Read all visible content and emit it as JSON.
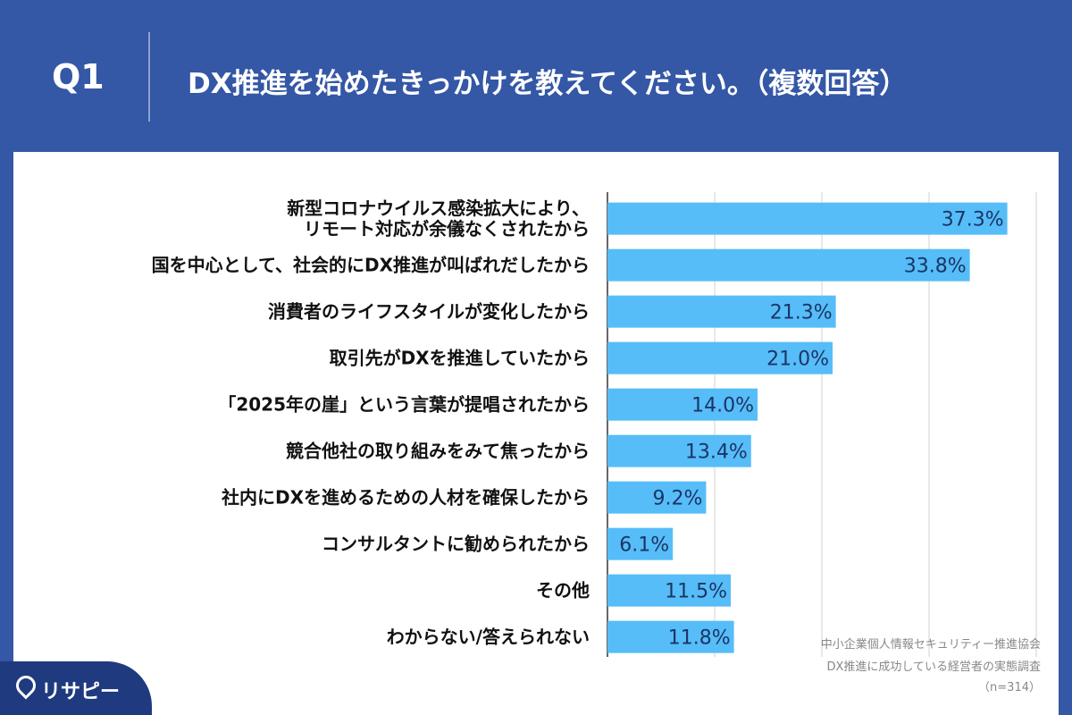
{
  "header": {
    "label": "Q1",
    "title": "DX推進を始めたきっかけを教えてください。（複数回答）"
  },
  "chart_data": {
    "type": "bar",
    "orientation": "horizontal",
    "categories": [
      "新型コロナウイルス感染拡大により、\nリモート対応が余儀なくされたから",
      "国を中心として、社会的にDX推進が叫ばれだしたから",
      "消費者のライフスタイルが変化したから",
      "取引先がDXを推進していたから",
      "「2025年の崖」という言葉が提唱されたから",
      "競合他社の取り組みをみて焦ったから",
      "社内にDXを進めるための人材を確保したから",
      "コンサルタントに勧められたから",
      "その他",
      "わからない/答えられない"
    ],
    "values": [
      37.3,
      33.8,
      21.3,
      21.0,
      14.0,
      13.4,
      9.2,
      6.1,
      11.5,
      11.8
    ],
    "value_labels": [
      "37.3%",
      "33.8%",
      "21.3%",
      "21.0%",
      "14.0%",
      "13.4%",
      "9.2%",
      "6.1%",
      "11.5%",
      "11.8%"
    ],
    "color": "#56bdf8",
    "xlim": [
      0,
      40
    ],
    "xticks": [
      0,
      10,
      20,
      30,
      40
    ],
    "grid": true
  },
  "source": [
    "中小企業個人情報セキュリティー推進協会",
    "DX推進に成功している経営者の実態調査",
    "（n=314）"
  ],
  "logo": "リサピー"
}
